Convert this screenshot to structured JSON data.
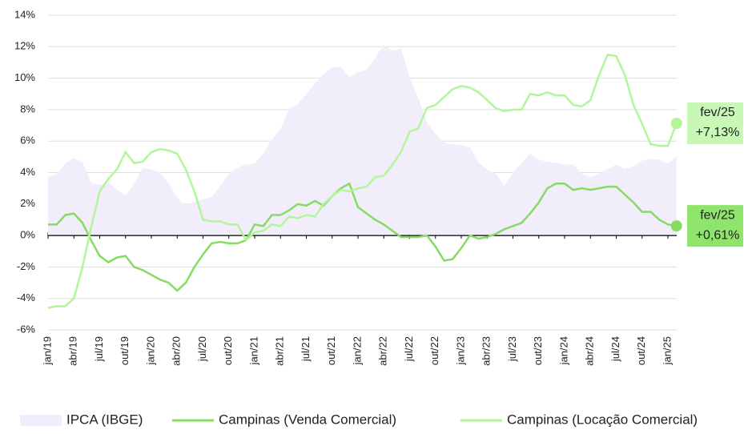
{
  "chart_data": {
    "type": "line",
    "categories": [
      "jan/19",
      null,
      null,
      "abr/19",
      null,
      null,
      "jul/19",
      null,
      null,
      "out/19",
      null,
      null,
      "jan/20",
      null,
      null,
      "abr/20",
      null,
      null,
      "jul/20",
      null,
      null,
      "out/20",
      null,
      null,
      "jan/21",
      null,
      null,
      "abr/21",
      null,
      null,
      "jul/21",
      null,
      null,
      "out/21",
      null,
      null,
      "jan/22",
      null,
      null,
      "abr/22",
      null,
      null,
      "jul/22",
      null,
      null,
      "out/22",
      null,
      null,
      "jan/23",
      null,
      null,
      "abr/23",
      null,
      null,
      "jul/23",
      null,
      null,
      "out/23",
      null,
      null,
      "jan/24",
      null,
      null,
      "abr/24",
      null,
      null,
      "jul/24",
      null,
      null,
      "out/24",
      null,
      null,
      "jan/25",
      null
    ],
    "series": [
      {
        "name": "IPCA (IBGE)",
        "kind": "area",
        "color": "#f1edfb",
        "values": [
          3.78,
          3.89,
          4.58,
          4.94,
          4.66,
          3.37,
          3.22,
          3.43,
          2.89,
          2.54,
          3.27,
          4.31,
          4.19,
          4.01,
          3.3,
          2.4,
          1.88,
          2.13,
          2.31,
          2.44,
          3.14,
          3.92,
          4.31,
          4.52,
          4.56,
          5.2,
          6.1,
          6.76,
          8.06,
          8.35,
          8.99,
          9.68,
          10.25,
          10.67,
          10.74,
          10.06,
          10.38,
          10.54,
          11.3,
          12.13,
          11.73,
          11.89,
          10.07,
          8.73,
          7.17,
          6.47,
          5.9,
          5.79,
          5.77,
          5.6,
          4.65,
          4.18,
          3.94,
          3.16,
          3.99,
          4.61,
          5.19,
          4.82,
          4.68,
          4.62,
          4.51,
          4.5,
          3.93,
          3.69,
          3.93,
          4.23,
          4.5,
          4.24,
          4.42,
          4.76,
          4.87,
          4.83,
          4.56,
          5.06
        ]
      },
      {
        "name": "Campinas (Venda Comercial)",
        "kind": "line",
        "color": "#86dc62",
        "label_fill": "#8fe46c",
        "end_label": "fev/25",
        "values": [
          0.7,
          0.7,
          1.3,
          1.4,
          0.8,
          -0.3,
          -1.3,
          -1.7,
          -1.4,
          -1.3,
          -2.0,
          -2.2,
          -2.5,
          -2.8,
          -3.0,
          -3.5,
          -3.0,
          -2.0,
          -1.2,
          -0.5,
          -0.4,
          -0.5,
          -0.5,
          -0.3,
          0.7,
          0.6,
          1.3,
          1.3,
          1.6,
          2.0,
          1.9,
          2.2,
          1.9,
          2.5,
          3.0,
          3.3,
          1.8,
          1.4,
          1.0,
          0.7,
          0.3,
          -0.1,
          -0.1,
          -0.1,
          0.0,
          -0.7,
          -1.6,
          -1.5,
          -0.8,
          0.0,
          -0.2,
          -0.1,
          0.1,
          0.4,
          0.6,
          0.8,
          1.4,
          2.1,
          3.0,
          3.3,
          3.3,
          2.9,
          3.0,
          2.9,
          3.0,
          3.1,
          3.1,
          2.6,
          2.1,
          1.5,
          1.5,
          1.0,
          0.7,
          0.61
        ],
        "value_labels": [
          null,
          null,
          null,
          null,
          null,
          null,
          null,
          null,
          null,
          null,
          null,
          null,
          null,
          null,
          null,
          null,
          null,
          null,
          null,
          null,
          null,
          null,
          null,
          null,
          null,
          null,
          null,
          null,
          null,
          null,
          null,
          null,
          null,
          null,
          null,
          null,
          null,
          null,
          null,
          null,
          null,
          null,
          null,
          null,
          null,
          null,
          null,
          null,
          null,
          null,
          null,
          null,
          null,
          null,
          null,
          null,
          null,
          null,
          null,
          null,
          null,
          null,
          null,
          null,
          null,
          null,
          null,
          null,
          null,
          null,
          null,
          null,
          null,
          "+0,61%"
        ]
      },
      {
        "name": "Campinas (Locação Comercial)",
        "kind": "line",
        "color": "#b3f59b",
        "label_fill": "#c8f8b5",
        "end_label": "fev/25",
        "values": [
          -4.6,
          -4.5,
          -4.5,
          -4.0,
          -2.0,
          0.5,
          2.8,
          3.6,
          4.2,
          5.3,
          4.6,
          4.7,
          5.3,
          5.5,
          5.4,
          5.2,
          4.2,
          2.8,
          1.0,
          0.9,
          0.9,
          0.7,
          0.7,
          -0.3,
          0.2,
          0.3,
          0.7,
          0.6,
          1.2,
          1.1,
          1.3,
          1.2,
          2.0,
          2.5,
          2.9,
          2.8,
          3.0,
          3.1,
          3.7,
          3.8,
          4.5,
          5.3,
          6.6,
          6.8,
          8.1,
          8.3,
          8.8,
          9.3,
          9.5,
          9.4,
          9.1,
          8.6,
          8.1,
          7.9,
          8.0,
          8.0,
          9.0,
          8.9,
          9.1,
          8.9,
          8.9,
          8.3,
          8.2,
          8.6,
          10.2,
          11.5,
          11.4,
          10.2,
          8.3,
          7.1,
          5.8,
          5.7,
          5.7,
          7.13
        ],
        "value_labels": [
          null,
          null,
          null,
          null,
          null,
          null,
          null,
          null,
          null,
          null,
          null,
          null,
          null,
          null,
          null,
          null,
          null,
          null,
          null,
          null,
          null,
          null,
          null,
          null,
          null,
          null,
          null,
          null,
          null,
          null,
          null,
          null,
          null,
          null,
          null,
          null,
          null,
          null,
          null,
          null,
          null,
          null,
          null,
          null,
          null,
          null,
          null,
          null,
          null,
          null,
          null,
          null,
          null,
          null,
          null,
          null,
          null,
          null,
          null,
          null,
          null,
          null,
          null,
          null,
          null,
          null,
          null,
          null,
          null,
          null,
          null,
          null,
          null,
          "+7,13%"
        ]
      }
    ],
    "ylim": [
      -6,
      14
    ],
    "yticks": [
      {
        "value": -6,
        "label": "-6%"
      },
      {
        "value": -4,
        "label": "-4%"
      },
      {
        "value": -2,
        "label": "-2%"
      },
      {
        "value": 0,
        "label": "0%"
      },
      {
        "value": 2,
        "label": "2%"
      },
      {
        "value": 4,
        "label": "4%"
      },
      {
        "value": 6,
        "label": "6%"
      },
      {
        "value": 8,
        "label": "8%"
      },
      {
        "value": 10,
        "label": "10%"
      },
      {
        "value": 12,
        "label": "12%"
      },
      {
        "value": 14,
        "label": "14%"
      }
    ],
    "grid": true,
    "legend": "bottom"
  }
}
